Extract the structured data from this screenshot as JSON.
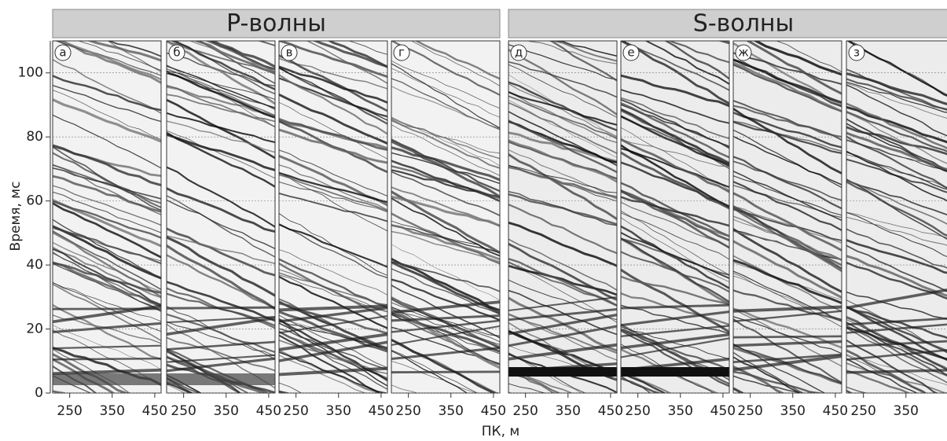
{
  "groups": [
    {
      "title": "P-волны",
      "panels": [
        0,
        1,
        2,
        3
      ]
    },
    {
      "title": "S-волны",
      "panels": [
        4,
        5,
        6,
        7
      ]
    }
  ],
  "panels": [
    {
      "label": "а"
    },
    {
      "label": "б"
    },
    {
      "label": "в"
    },
    {
      "label": "г"
    },
    {
      "label": "д"
    },
    {
      "label": "е"
    },
    {
      "label": "ж"
    },
    {
      "label": "з"
    }
  ],
  "y_axis": {
    "label": "Время, мс",
    "lim": [
      0,
      110
    ],
    "ticks": [
      0,
      20,
      40,
      60,
      80,
      100
    ]
  },
  "x_axis": {
    "label": "ПК, м",
    "lim": [
      210,
      465
    ],
    "ticks": [
      250,
      350,
      450
    ]
  }
}
